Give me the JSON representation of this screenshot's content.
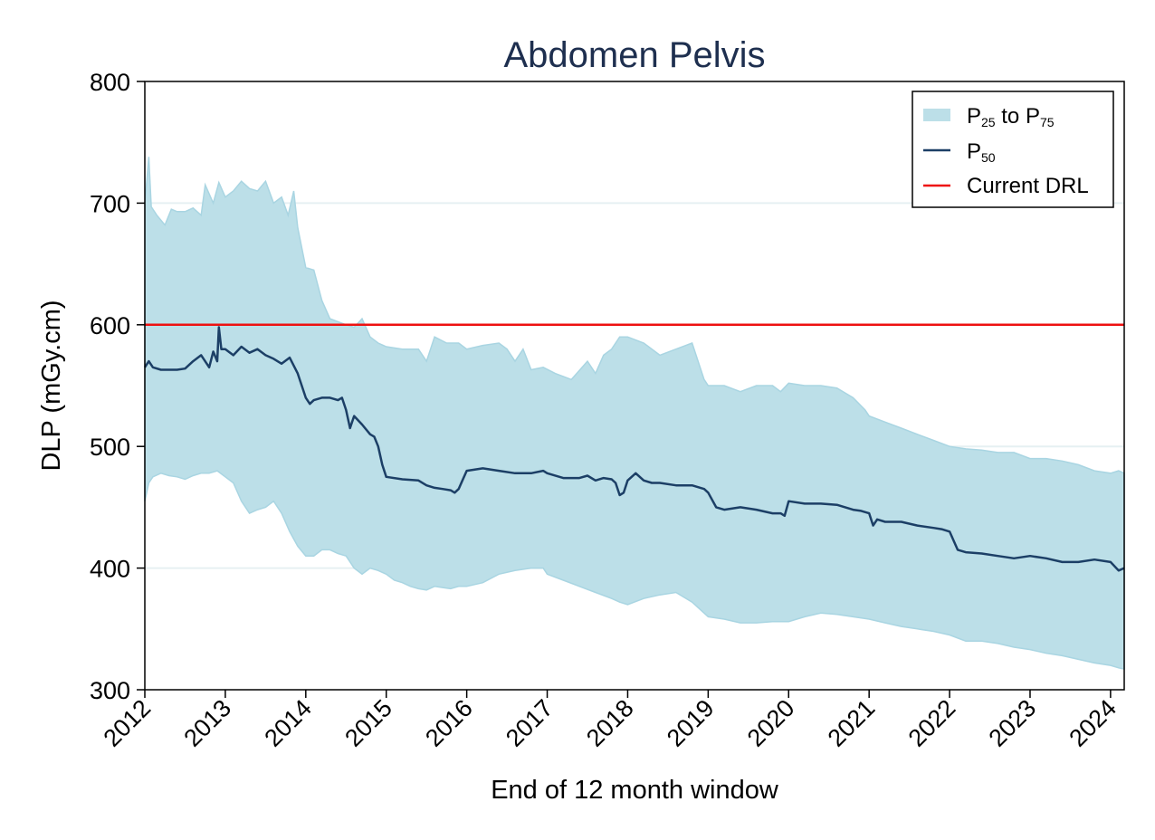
{
  "chart_data": {
    "type": "area",
    "title": "Abdomen Pelvis",
    "xlabel": "End of 12 month window",
    "ylabel": "DLP (mGy.cm)",
    "xlim": [
      2012,
      2024.17
    ],
    "ylim": [
      300,
      800
    ],
    "xticks": [
      "2012",
      "2013",
      "2014",
      "2015",
      "2016",
      "2017",
      "2018",
      "2019",
      "2020",
      "2021",
      "2022",
      "2023",
      "2024"
    ],
    "yticks": [
      "300",
      "400",
      "500",
      "600",
      "700",
      "800"
    ],
    "legend_position": "top-right",
    "legend": {
      "band": {
        "main": "P",
        "sub1": "25",
        "mid": " to P",
        "sub2": "75"
      },
      "median": {
        "main": "P",
        "sub": "50"
      },
      "drl": "Current DRL"
    },
    "colors": {
      "band": "#bcdfe8",
      "band_edge": "#a9d5e2",
      "median": "#1c3f66",
      "drl": "#ee1111",
      "title": "#1e2f4f",
      "grid": "#e6f0f2"
    },
    "drl_value": 600,
    "series": [
      {
        "name": "P75",
        "x": [
          2012.0,
          2012.05,
          2012.08,
          2012.15,
          2012.25,
          2012.33,
          2012.4,
          2012.5,
          2012.6,
          2012.7,
          2012.75,
          2012.85,
          2012.92,
          2013.0,
          2013.1,
          2013.2,
          2013.3,
          2013.4,
          2013.5,
          2013.6,
          2013.7,
          2013.78,
          2013.85,
          2013.9,
          2014.0,
          2014.1,
          2014.2,
          2014.3,
          2014.5,
          2014.6,
          2014.7,
          2014.8,
          2014.9,
          2015.0,
          2015.2,
          2015.4,
          2015.5,
          2015.6,
          2015.75,
          2015.9,
          2016.0,
          2016.2,
          2016.4,
          2016.5,
          2016.6,
          2016.7,
          2016.8,
          2016.95,
          2017.1,
          2017.3,
          2017.5,
          2017.6,
          2017.7,
          2017.8,
          2017.9,
          2018.0,
          2018.2,
          2018.4,
          2018.6,
          2018.8,
          2018.95,
          2019.0,
          2019.2,
          2019.4,
          2019.6,
          2019.8,
          2019.9,
          2020.0,
          2020.2,
          2020.4,
          2020.6,
          2020.8,
          2020.95,
          2021.0,
          2021.2,
          2021.4,
          2021.6,
          2021.8,
          2022.0,
          2022.2,
          2022.4,
          2022.6,
          2022.8,
          2023.0,
          2023.2,
          2023.4,
          2023.6,
          2023.8,
          2024.0,
          2024.1,
          2024.17
        ],
        "values": [
          700,
          738,
          697,
          690,
          682,
          695,
          693,
          693,
          696,
          690,
          715,
          700,
          717,
          705,
          710,
          718,
          712,
          710,
          718,
          700,
          705,
          690,
          710,
          680,
          647,
          645,
          620,
          605,
          600,
          598,
          605,
          590,
          585,
          582,
          580,
          580,
          570,
          590,
          585,
          585,
          580,
          583,
          585,
          580,
          570,
          580,
          563,
          565,
          560,
          555,
          570,
          560,
          575,
          580,
          590,
          590,
          585,
          575,
          580,
          585,
          555,
          550,
          550,
          545,
          550,
          550,
          545,
          552,
          550,
          550,
          548,
          540,
          530,
          525,
          520,
          515,
          510,
          505,
          500,
          498,
          497,
          495,
          495,
          490,
          490,
          488,
          485,
          480,
          478,
          480,
          478
        ]
      },
      {
        "name": "P50",
        "x": [
          2012.0,
          2012.05,
          2012.1,
          2012.2,
          2012.3,
          2012.4,
          2012.5,
          2012.6,
          2012.7,
          2012.8,
          2012.85,
          2012.9,
          2012.92,
          2012.95,
          2013.0,
          2013.1,
          2013.2,
          2013.3,
          2013.4,
          2013.5,
          2013.6,
          2013.7,
          2013.8,
          2013.9,
          2014.0,
          2014.05,
          2014.1,
          2014.2,
          2014.3,
          2014.4,
          2014.45,
          2014.5,
          2014.55,
          2014.6,
          2014.7,
          2014.8,
          2014.85,
          2014.9,
          2014.95,
          2015.0,
          2015.2,
          2015.4,
          2015.5,
          2015.6,
          2015.7,
          2015.8,
          2015.85,
          2015.9,
          2016.0,
          2016.2,
          2016.4,
          2016.6,
          2016.8,
          2016.95,
          2017.0,
          2017.2,
          2017.4,
          2017.5,
          2017.6,
          2017.7,
          2017.8,
          2017.85,
          2017.9,
          2017.95,
          2018.0,
          2018.1,
          2018.2,
          2018.3,
          2018.4,
          2018.6,
          2018.8,
          2018.95,
          2019.0,
          2019.1,
          2019.2,
          2019.4,
          2019.6,
          2019.8,
          2019.9,
          2019.95,
          2020.0,
          2020.2,
          2020.4,
          2020.6,
          2020.8,
          2020.9,
          2021.0,
          2021.05,
          2021.1,
          2021.2,
          2021.4,
          2021.6,
          2021.8,
          2021.9,
          2022.0,
          2022.1,
          2022.2,
          2022.4,
          2022.6,
          2022.8,
          2023.0,
          2023.2,
          2023.4,
          2023.6,
          2023.8,
          2024.0,
          2024.1,
          2024.17
        ],
        "values": [
          565,
          570,
          565,
          563,
          563,
          563,
          564,
          570,
          575,
          565,
          578,
          570,
          598,
          580,
          580,
          575,
          582,
          577,
          580,
          575,
          572,
          568,
          573,
          560,
          540,
          535,
          538,
          540,
          540,
          538,
          540,
          530,
          515,
          525,
          518,
          510,
          508,
          500,
          485,
          475,
          473,
          472,
          468,
          466,
          465,
          464,
          462,
          465,
          480,
          482,
          480,
          478,
          478,
          480,
          478,
          474,
          474,
          476,
          472,
          474,
          473,
          470,
          460,
          462,
          472,
          478,
          472,
          470,
          470,
          468,
          468,
          465,
          462,
          450,
          448,
          450,
          448,
          445,
          445,
          443,
          455,
          453,
          453,
          452,
          448,
          447,
          445,
          435,
          440,
          438,
          438,
          435,
          433,
          432,
          430,
          415,
          413,
          412,
          410,
          408,
          410,
          408,
          405,
          405,
          407,
          405,
          398,
          400
        ]
      },
      {
        "name": "P25",
        "x": [
          2012.0,
          2012.05,
          2012.1,
          2012.2,
          2012.3,
          2012.4,
          2012.5,
          2012.6,
          2012.7,
          2012.8,
          2012.9,
          2013.0,
          2013.1,
          2013.2,
          2013.3,
          2013.4,
          2013.5,
          2013.6,
          2013.7,
          2013.8,
          2013.9,
          2014.0,
          2014.1,
          2014.2,
          2014.3,
          2014.4,
          2014.5,
          2014.6,
          2014.7,
          2014.8,
          2014.9,
          2015.0,
          2015.1,
          2015.2,
          2015.3,
          2015.4,
          2015.5,
          2015.6,
          2015.7,
          2015.8,
          2015.9,
          2016.0,
          2016.2,
          2016.4,
          2016.6,
          2016.8,
          2016.95,
          2017.0,
          2017.2,
          2017.4,
          2017.6,
          2017.8,
          2017.9,
          2018.0,
          2018.2,
          2018.4,
          2018.6,
          2018.8,
          2019.0,
          2019.2,
          2019.4,
          2019.6,
          2019.8,
          2020.0,
          2020.2,
          2020.4,
          2020.6,
          2020.8,
          2021.0,
          2021.2,
          2021.4,
          2021.6,
          2021.8,
          2022.0,
          2022.2,
          2022.4,
          2022.6,
          2022.8,
          2023.0,
          2023.2,
          2023.4,
          2023.6,
          2023.8,
          2024.0,
          2024.1,
          2024.17
        ],
        "values": [
          455,
          470,
          475,
          478,
          476,
          475,
          473,
          476,
          478,
          478,
          480,
          475,
          470,
          455,
          445,
          448,
          450,
          455,
          445,
          430,
          418,
          410,
          410,
          415,
          415,
          412,
          410,
          400,
          395,
          400,
          398,
          395,
          390,
          388,
          385,
          383,
          382,
          385,
          384,
          383,
          385,
          385,
          388,
          395,
          398,
          400,
          400,
          395,
          390,
          385,
          380,
          375,
          372,
          370,
          375,
          378,
          380,
          372,
          360,
          358,
          355,
          355,
          356,
          356,
          360,
          363,
          362,
          360,
          358,
          355,
          352,
          350,
          348,
          345,
          340,
          340,
          338,
          335,
          333,
          330,
          328,
          325,
          322,
          320,
          318,
          317
        ]
      }
    ]
  }
}
